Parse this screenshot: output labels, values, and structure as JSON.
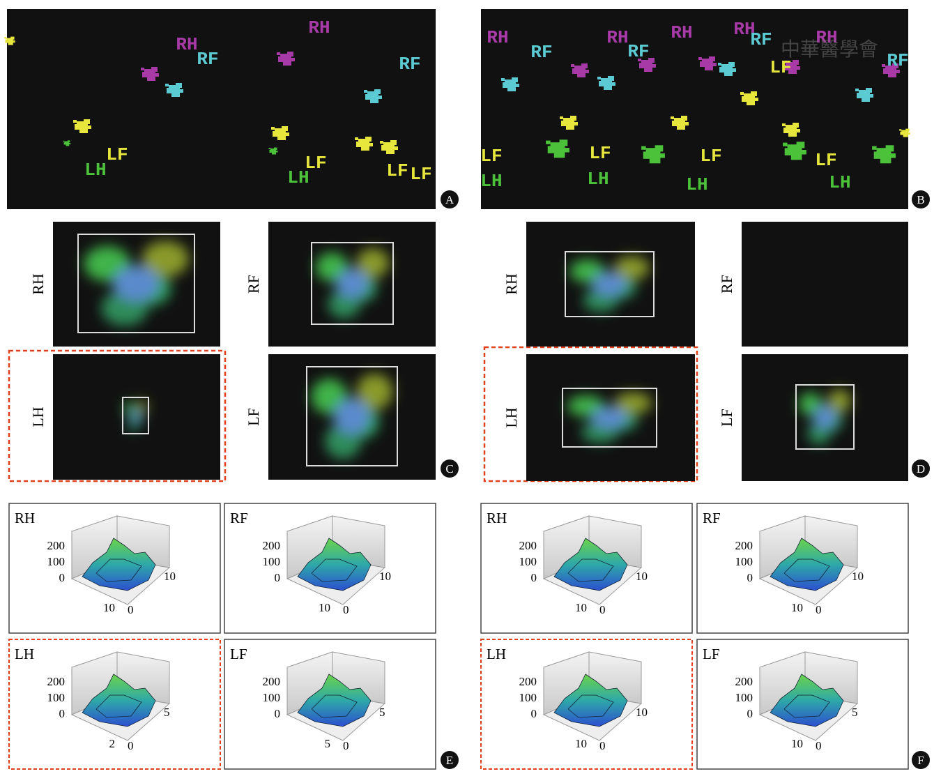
{
  "panel_a": {
    "letter": "A",
    "labels": [
      {
        "text": "RH",
        "color": "#a83aa8"
      },
      {
        "text": "RF",
        "color": "#5ccad2"
      },
      {
        "text": "RH",
        "color": "#a83aa8"
      },
      {
        "text": "RF",
        "color": "#5ccad2"
      },
      {
        "text": "LF",
        "color": "#e6e63c"
      },
      {
        "text": "LH",
        "color": "#4cc23a"
      },
      {
        "text": "LF",
        "color": "#e6e63c"
      },
      {
        "text": "LH",
        "color": "#4cc23a"
      },
      {
        "text": "LF",
        "color": "#e6e63c"
      },
      {
        "text": "LF",
        "color": "#e6e63c"
      }
    ]
  },
  "panel_b": {
    "letter": "B",
    "watermark": "中華醫學會",
    "labels": [
      {
        "text": "RH",
        "color": "#a83aa8"
      },
      {
        "text": "RF",
        "color": "#5ccad2"
      },
      {
        "text": "RH",
        "color": "#a83aa8"
      },
      {
        "text": "RF",
        "color": "#5ccad2"
      },
      {
        "text": "RH",
        "color": "#a83aa8"
      },
      {
        "text": "RH",
        "color": "#a83aa8"
      },
      {
        "text": "RF",
        "color": "#5ccad2"
      },
      {
        "text": "RH",
        "color": "#a83aa8"
      },
      {
        "text": "LF",
        "color": "#e6e63c"
      },
      {
        "text": "RF",
        "color": "#5ccad2"
      },
      {
        "text": "LF",
        "color": "#e6e63c"
      },
      {
        "text": "LH",
        "color": "#4cc23a"
      },
      {
        "text": "LF",
        "color": "#e6e63c"
      },
      {
        "text": "LH",
        "color": "#4cc23a"
      },
      {
        "text": "LF",
        "color": "#e6e63c"
      },
      {
        "text": "LH",
        "color": "#4cc23a"
      },
      {
        "text": "LF",
        "color": "#e6e63c"
      },
      {
        "text": "LH",
        "color": "#4cc23a"
      }
    ]
  },
  "panel_c": {
    "letter": "C",
    "views": [
      "RH",
      "RF",
      "LH",
      "LF"
    ]
  },
  "panel_d": {
    "letter": "D",
    "views": [
      "RH",
      "RF",
      "LH",
      "LF"
    ]
  },
  "panel_e": {
    "letter": "E",
    "plots": [
      {
        "label": "RH",
        "z_ticks": [
          200,
          100,
          0
        ],
        "side_tick": 10,
        "front_ticks": [
          10,
          0
        ]
      },
      {
        "label": "RF",
        "z_ticks": [
          200,
          100,
          0
        ],
        "side_tick": 10,
        "front_ticks": [
          10,
          0
        ]
      },
      {
        "label": "LH",
        "z_ticks": [
          200,
          100,
          0
        ],
        "side_tick": 5,
        "front_ticks": [
          2,
          0
        ]
      },
      {
        "label": "LF",
        "z_ticks": [
          200,
          100,
          0
        ],
        "side_tick": 5,
        "front_ticks": [
          5,
          0
        ]
      }
    ]
  },
  "panel_f": {
    "letter": "F",
    "plots": [
      {
        "label": "RH",
        "z_ticks": [
          200,
          100,
          0
        ],
        "side_tick": 10,
        "front_ticks": [
          10,
          0
        ]
      },
      {
        "label": "RF",
        "z_ticks": [
          200,
          100,
          0
        ],
        "side_tick": 10,
        "front_ticks": [
          10,
          0
        ]
      },
      {
        "label": "LH",
        "z_ticks": [
          200,
          100,
          0
        ],
        "side_tick": 10,
        "front_ticks": [
          10,
          0
        ]
      },
      {
        "label": "LF",
        "z_ticks": [
          200,
          100,
          0
        ],
        "side_tick": 5,
        "front_ticks": [
          10,
          0
        ]
      }
    ]
  }
}
